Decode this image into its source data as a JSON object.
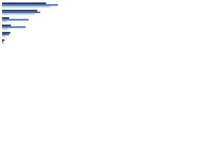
{
  "chart_data": {
    "type": "hbar",
    "categories": [
      null,
      null,
      null,
      null,
      null,
      null
    ],
    "series": [
      {
        "color": "#1b2a47",
        "values": [
          75,
          60,
          12,
          15,
          14,
          4
        ]
      },
      {
        "color": "#2f6fd6",
        "values": [
          95,
          65,
          45,
          40,
          12,
          2
        ]
      },
      {
        "color": "#c9c9c9",
        "values": [
          82,
          55,
          8,
          10,
          6,
          3
        ]
      }
    ],
    "xlim": [
      0,
      100
    ]
  }
}
